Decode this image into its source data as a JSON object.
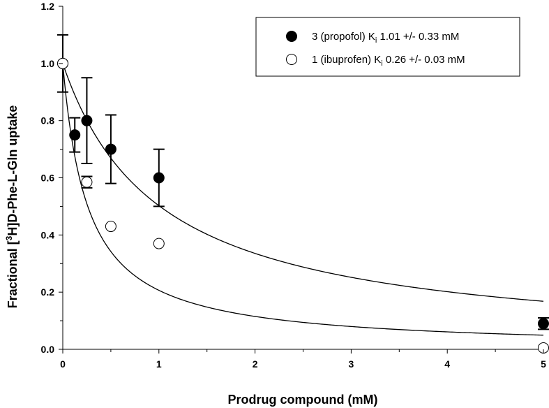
{
  "chart_data": {
    "type": "scatter",
    "title": "",
    "xlabel": "Prodrug compound (mM)",
    "ylabel_parts": {
      "prefix": "Fractional [",
      "superscript": "3",
      "suffix": "H]D-Phe-L-Gln uptake"
    },
    "xlim": [
      0,
      5
    ],
    "ylim": [
      0,
      1.2
    ],
    "x_ticks": [
      0,
      1,
      2,
      3,
      4,
      5
    ],
    "x_tick_labels": [
      "0",
      "1",
      "2",
      "3",
      "4",
      "5"
    ],
    "y_ticks": [
      0,
      0.2,
      0.4,
      0.6,
      0.8,
      1.0,
      1.2
    ],
    "y_tick_labels": [
      "0.0",
      "0.2",
      "0.4",
      "0.6",
      "0.8",
      "1.0",
      "1.2"
    ],
    "grid": false,
    "legend_position": "top-right",
    "series": [
      {
        "name": "3 (propofol) K",
        "name_subscript": "i",
        "name_tail": " 1.01 +/- 0.33 mM",
        "marker": "filled-circle",
        "color": "#000000",
        "ki": 1.01,
        "points": [
          {
            "x": 0.0,
            "y": 1.0,
            "err": 0.1
          },
          {
            "x": 0.125,
            "y": 0.75,
            "err": 0.06
          },
          {
            "x": 0.25,
            "y": 0.8,
            "err": 0.15
          },
          {
            "x": 0.5,
            "y": 0.7,
            "err": 0.12
          },
          {
            "x": 1.0,
            "y": 0.6,
            "err": 0.1
          },
          {
            "x": 5.0,
            "y": 0.09,
            "err": 0.02
          }
        ]
      },
      {
        "name": "1 (ibuprofen) K",
        "name_subscript": "i",
        "name_tail": " 0.26 +/- 0.03 mM",
        "marker": "open-circle",
        "color": "#000000",
        "ki": 0.26,
        "points": [
          {
            "x": 0.0,
            "y": 1.0,
            "err": 0.0
          },
          {
            "x": 0.25,
            "y": 0.585,
            "err": 0.02
          },
          {
            "x": 0.5,
            "y": 0.43,
            "err": 0.0
          },
          {
            "x": 1.0,
            "y": 0.37,
            "err": 0.0
          },
          {
            "x": 5.0,
            "y": 0.005,
            "err": 0.0
          }
        ]
      }
    ]
  }
}
